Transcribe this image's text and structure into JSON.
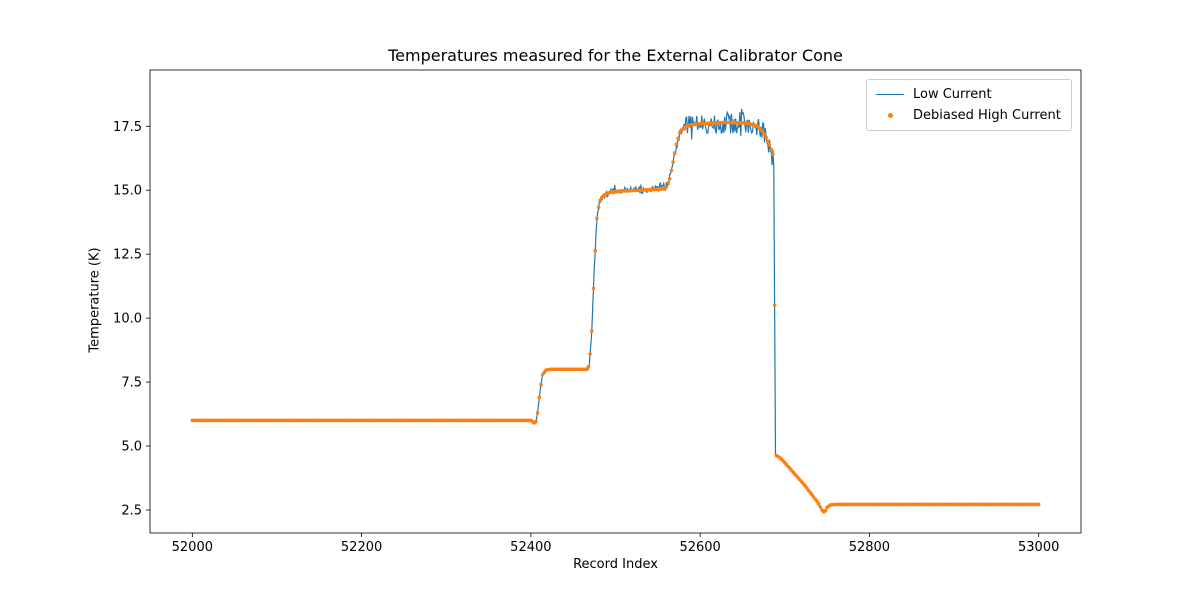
{
  "chart_data": {
    "type": "line",
    "title": "Temperatures measured for the External Calibrator Cone",
    "xlabel": "Record Index",
    "ylabel": "Temperature (K)",
    "xlim": [
      51950,
      53050
    ],
    "ylim": [
      1.6,
      19.7
    ],
    "x_range": [
      52000,
      53000
    ],
    "xticks": [
      52000,
      52200,
      52400,
      52600,
      52800,
      53000
    ],
    "xtick_labels": [
      "52000",
      "52200",
      "52400",
      "52600",
      "52800",
      "53000"
    ],
    "yticks": [
      2.5,
      5.0,
      7.5,
      10.0,
      12.5,
      15.0,
      17.5
    ],
    "ytick_labels": [
      "2.5",
      "5.0",
      "7.5",
      "10.0",
      "12.5",
      "15.0",
      "17.5"
    ],
    "grid": false,
    "legend_position": "upper right",
    "series": [
      {
        "name": "Low Current",
        "color": "#1f77b4",
        "style": "line"
      },
      {
        "name": "Debiased High Current",
        "color": "#ff7f0e",
        "style": "dots"
      }
    ],
    "profile": [
      [
        52000,
        6.0
      ],
      [
        52400,
        6.0
      ],
      [
        52404,
        5.9
      ],
      [
        52406,
        5.95
      ],
      [
        52408,
        6.3
      ],
      [
        52411,
        7.2
      ],
      [
        52414,
        7.8
      ],
      [
        52418,
        7.97
      ],
      [
        52424,
        8.0
      ],
      [
        52466,
        8.0
      ],
      [
        52469,
        8.15
      ],
      [
        52472,
        9.5
      ],
      [
        52475,
        12.0
      ],
      [
        52478,
        13.9
      ],
      [
        52481,
        14.55
      ],
      [
        52485,
        14.78
      ],
      [
        52492,
        14.9
      ],
      [
        52505,
        14.97
      ],
      [
        52530,
        15.0
      ],
      [
        52556,
        15.05
      ],
      [
        52560,
        15.12
      ],
      [
        52564,
        15.45
      ],
      [
        52568,
        16.1
      ],
      [
        52572,
        16.8
      ],
      [
        52576,
        17.25
      ],
      [
        52581,
        17.45
      ],
      [
        52588,
        17.55
      ],
      [
        52600,
        17.6
      ],
      [
        52630,
        17.65
      ],
      [
        52655,
        17.63
      ],
      [
        52668,
        17.5
      ],
      [
        52676,
        17.2
      ],
      [
        52683,
        16.7
      ],
      [
        52687,
        16.3
      ],
      [
        52688,
        10.5
      ],
      [
        52689,
        4.65
      ],
      [
        52694,
        4.55
      ],
      [
        52700,
        4.35
      ],
      [
        52708,
        4.05
      ],
      [
        52716,
        3.75
      ],
      [
        52724,
        3.45
      ],
      [
        52732,
        3.1
      ],
      [
        52739,
        2.8
      ],
      [
        52744,
        2.5
      ],
      [
        52747,
        2.4
      ],
      [
        52750,
        2.6
      ],
      [
        52754,
        2.7
      ],
      [
        52760,
        2.72
      ],
      [
        53000,
        2.72
      ]
    ],
    "noise_segments": [
      [
        52000,
        52403,
        0.022
      ],
      [
        52406,
        52465,
        0.04
      ],
      [
        52465,
        52479,
        0.09
      ],
      [
        52479,
        52556,
        0.13
      ],
      [
        52556,
        52582,
        0.22
      ],
      [
        52582,
        52687,
        0.42
      ],
      [
        52690,
        53000,
        0.018
      ]
    ]
  }
}
